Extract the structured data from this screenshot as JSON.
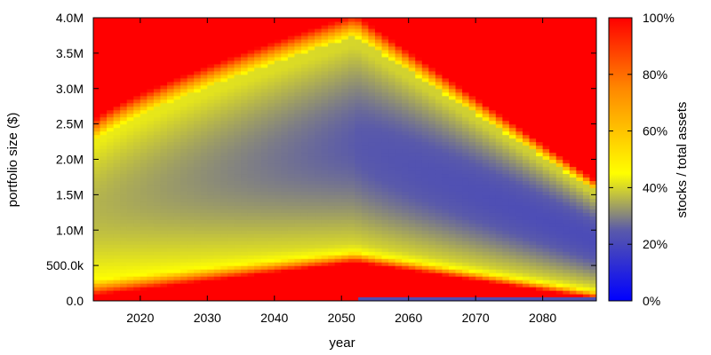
{
  "chart_data": {
    "type": "heatmap",
    "title": "",
    "xlabel": "year",
    "ylabel": "portfolio size ($)",
    "colorbar_label": "stocks / total assets",
    "x_range": [
      2013,
      2088
    ],
    "y_range": [
      0,
      4000000
    ],
    "x_ticks": [
      {
        "value": 2020,
        "label": "2020"
      },
      {
        "value": 2030,
        "label": "2030"
      },
      {
        "value": 2040,
        "label": "2040"
      },
      {
        "value": 2050,
        "label": "2050"
      },
      {
        "value": 2060,
        "label": "2060"
      },
      {
        "value": 2070,
        "label": "2070"
      },
      {
        "value": 2080,
        "label": "2080"
      }
    ],
    "y_ticks": [
      {
        "value": 0,
        "label": "0.0"
      },
      {
        "value": 500000,
        "label": "500.0k"
      },
      {
        "value": 1000000,
        "label": "1.0M"
      },
      {
        "value": 1500000,
        "label": "1.5M"
      },
      {
        "value": 2000000,
        "label": "2.0M"
      },
      {
        "value": 2500000,
        "label": "2.5M"
      },
      {
        "value": 3000000,
        "label": "3.0M"
      },
      {
        "value": 3500000,
        "label": "3.5M"
      },
      {
        "value": 4000000,
        "label": "4.0M"
      }
    ],
    "colorbar_ticks": [
      {
        "value": 0,
        "label": "0%"
      },
      {
        "value": 20,
        "label": "20%"
      },
      {
        "value": 40,
        "label": "40%"
      },
      {
        "value": 60,
        "label": "60%"
      },
      {
        "value": 80,
        "label": "80%"
      },
      {
        "value": 100,
        "label": "100%"
      }
    ],
    "colorscale": [
      {
        "value": 0,
        "color": "#0000ff"
      },
      {
        "value": 25,
        "color": "#5a5aaa"
      },
      {
        "value": 45,
        "color": "#ffff00"
      },
      {
        "value": 75,
        "color": "#ff8800"
      },
      {
        "value": 100,
        "color": "#ff0000"
      }
    ],
    "z_range": [
      0,
      100
    ],
    "grid": false
  }
}
